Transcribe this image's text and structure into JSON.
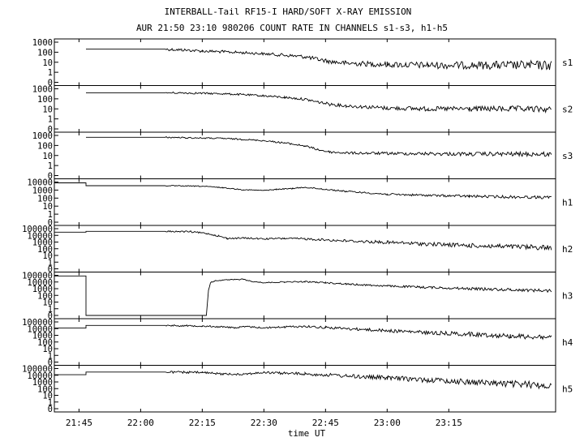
{
  "chart_data": {
    "type": "line",
    "title": "INTERBALL-Tail RF15-I HARD/SOFT X-RAY EMISSION",
    "subtitle": "AUR 21:50 23:10 980206  COUNT RATE IN CHANNELS s1-s3, h1-h5",
    "xlabel": "time UT",
    "x_ticks": [
      "21:45",
      "22:00",
      "22:15",
      "22:30",
      "22:45",
      "23:00",
      "23:15"
    ],
    "x_tick_minutes": [
      105,
      120,
      135,
      150,
      165,
      180,
      195
    ],
    "xlim_minutes": [
      99,
      221
    ],
    "grid": false,
    "panels": [
      {
        "name": "s1",
        "y_ticks": [
          "1000",
          "100",
          "10",
          "1",
          "0"
        ],
        "log_top": 3,
        "series": [
          [
            99,
            null
          ],
          [
            106.7,
            null
          ],
          [
            106.7,
            200
          ],
          [
            126,
            200
          ],
          [
            130,
            170
          ],
          [
            135,
            130
          ],
          [
            140,
            110
          ],
          [
            145,
            90
          ],
          [
            150,
            70
          ],
          [
            155,
            50
          ],
          [
            160,
            35
          ],
          [
            163,
            20
          ],
          [
            166,
            12
          ],
          [
            170,
            8
          ],
          [
            180,
            6
          ],
          [
            190,
            5
          ],
          [
            200,
            5
          ],
          [
            210,
            5
          ],
          [
            220,
            5
          ]
        ],
        "noise": 0.3
      },
      {
        "name": "s2",
        "y_ticks": [
          "1000",
          "100",
          "10",
          "1",
          "0"
        ],
        "log_top": 3,
        "series": [
          [
            99,
            null
          ],
          [
            106.7,
            null
          ],
          [
            106.7,
            400
          ],
          [
            126,
            400
          ],
          [
            132,
            380
          ],
          [
            140,
            320
          ],
          [
            145,
            260
          ],
          [
            150,
            200
          ],
          [
            155,
            140
          ],
          [
            160,
            90
          ],
          [
            163,
            50
          ],
          [
            166,
            30
          ],
          [
            170,
            20
          ],
          [
            180,
            12
          ],
          [
            190,
            10
          ],
          [
            200,
            10
          ],
          [
            210,
            10
          ],
          [
            220,
            9
          ]
        ],
        "noise": 0.2
      },
      {
        "name": "s3",
        "y_ticks": [
          "1000",
          "100",
          "10",
          "1",
          "0"
        ],
        "log_top": 3,
        "series": [
          [
            99,
            null
          ],
          [
            106.7,
            null
          ],
          [
            106.7,
            650
          ],
          [
            126,
            650
          ],
          [
            130,
            600
          ],
          [
            140,
            500
          ],
          [
            145,
            400
          ],
          [
            150,
            300
          ],
          [
            155,
            180
          ],
          [
            160,
            90
          ],
          [
            163,
            40
          ],
          [
            166,
            22
          ],
          [
            170,
            18
          ],
          [
            180,
            16
          ],
          [
            190,
            15
          ],
          [
            200,
            14
          ],
          [
            210,
            14
          ],
          [
            220,
            13
          ]
        ],
        "noise": 0.15
      },
      {
        "name": "h1",
        "y_ticks": [
          "10000",
          "1000",
          "100",
          "10",
          "1",
          "0"
        ],
        "log_top": 4,
        "series": [
          [
            99,
            8000
          ],
          [
            106.7,
            8000
          ],
          [
            106.7,
            3500
          ],
          [
            126,
            3500
          ],
          [
            135,
            3000
          ],
          [
            140,
            2000
          ],
          [
            145,
            1100
          ],
          [
            150,
            900
          ],
          [
            153,
            1200
          ],
          [
            157,
            1600
          ],
          [
            160,
            2200
          ],
          [
            164,
            1400
          ],
          [
            170,
            700
          ],
          [
            180,
            300
          ],
          [
            190,
            220
          ],
          [
            200,
            170
          ],
          [
            210,
            140
          ],
          [
            220,
            120
          ]
        ],
        "noise": 0.12
      },
      {
        "name": "h2",
        "y_ticks": [
          "100000",
          "10000",
          "1000",
          "100",
          "10",
          "1",
          "0"
        ],
        "log_top": 5,
        "series": [
          [
            99,
            30000
          ],
          [
            106.7,
            30000
          ],
          [
            106.7,
            40000
          ],
          [
            126,
            40000
          ],
          [
            132,
            35000
          ],
          [
            136,
            20000
          ],
          [
            139,
            8000
          ],
          [
            141,
            3500
          ],
          [
            145,
            4000
          ],
          [
            150,
            3000
          ],
          [
            155,
            3500
          ],
          [
            160,
            3000
          ],
          [
            170,
            1500
          ],
          [
            180,
            900
          ],
          [
            190,
            500
          ],
          [
            200,
            300
          ],
          [
            210,
            200
          ],
          [
            220,
            150
          ]
        ],
        "noise": 0.25
      },
      {
        "name": "h3",
        "y_ticks": [
          "100000",
          "10000",
          "1000",
          "100",
          "10",
          "1",
          "0"
        ],
        "log_top": 5,
        "series": [
          [
            99,
            80000
          ],
          [
            106.7,
            80000
          ],
          [
            106.7,
            0
          ],
          [
            136,
            0
          ],
          [
            136.5,
            500
          ],
          [
            137,
            8000
          ],
          [
            138,
            15000
          ],
          [
            140,
            20000
          ],
          [
            145,
            25000
          ],
          [
            147,
            12000
          ],
          [
            150,
            8000
          ],
          [
            155,
            10000
          ],
          [
            160,
            11000
          ],
          [
            165,
            8000
          ],
          [
            170,
            5000
          ],
          [
            180,
            2500
          ],
          [
            190,
            1600
          ],
          [
            200,
            1000
          ],
          [
            210,
            700
          ],
          [
            220,
            500
          ]
        ],
        "noise": 0.15
      },
      {
        "name": "h4",
        "y_ticks": [
          "100000",
          "10000",
          "1000",
          "100",
          "10",
          "1",
          "0"
        ],
        "log_top": 5,
        "series": [
          [
            99,
            12000
          ],
          [
            106.7,
            12000
          ],
          [
            106.7,
            30000
          ],
          [
            126,
            30000
          ],
          [
            135,
            25000
          ],
          [
            140,
            18000
          ],
          [
            143,
            14000
          ],
          [
            146,
            20000
          ],
          [
            150,
            13000
          ],
          [
            155,
            18000
          ],
          [
            160,
            22000
          ],
          [
            165,
            15000
          ],
          [
            170,
            10000
          ],
          [
            180,
            5000
          ],
          [
            190,
            2500
          ],
          [
            200,
            1500
          ],
          [
            210,
            800
          ],
          [
            220,
            500
          ]
        ],
        "noise": 0.25
      },
      {
        "name": "h5",
        "y_ticks": [
          "100000",
          "10000",
          "1000",
          "100",
          "10",
          "1",
          "0"
        ],
        "log_top": 5,
        "series": [
          [
            99,
            12000
          ],
          [
            106.7,
            12000
          ],
          [
            106.7,
            30000
          ],
          [
            126,
            30000
          ],
          [
            135,
            25000
          ],
          [
            140,
            15000
          ],
          [
            145,
            15000
          ],
          [
            150,
            25000
          ],
          [
            155,
            20000
          ],
          [
            160,
            16000
          ],
          [
            170,
            8000
          ],
          [
            180,
            4000
          ],
          [
            190,
            2000
          ],
          [
            200,
            1000
          ],
          [
            210,
            500
          ],
          [
            220,
            300
          ]
        ],
        "noise": 0.35
      }
    ]
  }
}
